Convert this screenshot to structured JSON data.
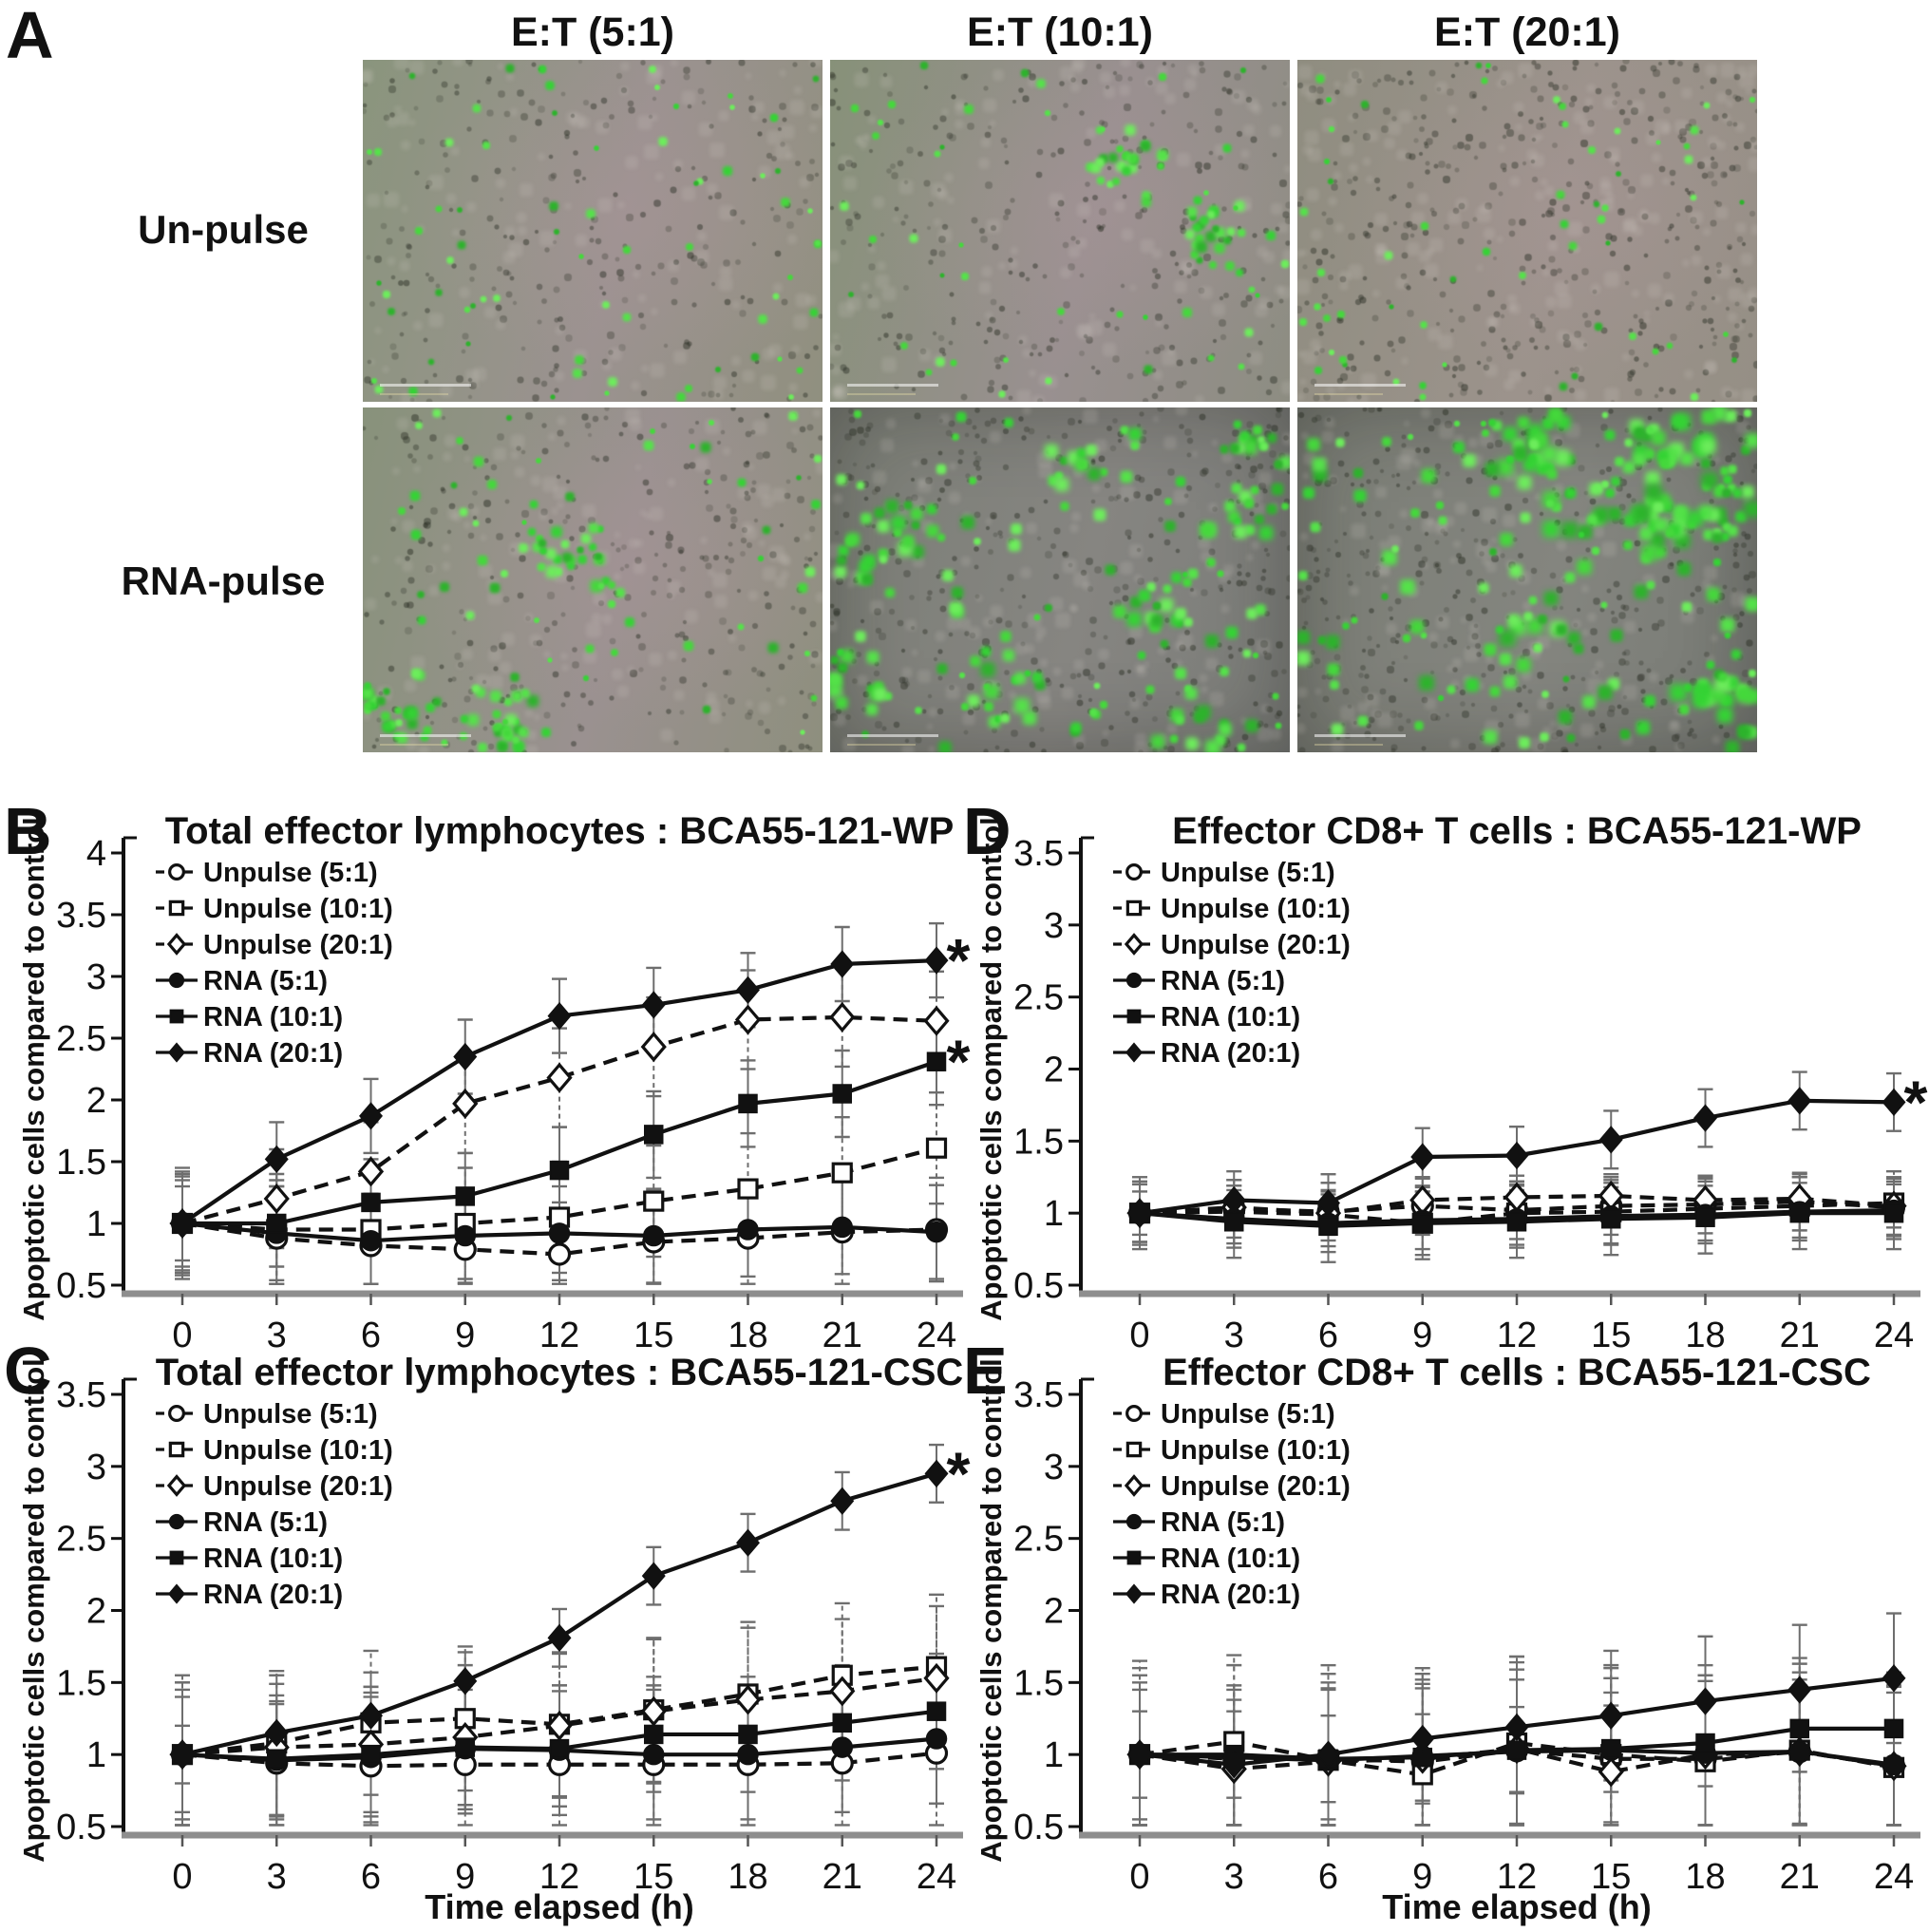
{
  "panel_a": {
    "label": "A",
    "col_headers": [
      "E:T (5:1)",
      "E:T (10:1)",
      "E:T (20:1)"
    ],
    "row_labels": [
      "Un-pulse",
      "RNA-pulse"
    ],
    "tiles": [
      {
        "name": "unpulse-5-1",
        "c1": "#8a957d",
        "c2": "#9b9290",
        "c3": "#90907f",
        "tint": true,
        "dots": 70,
        "dmin": 3,
        "dmax": 8,
        "clusters": 0,
        "bias": "none",
        "speckles": 260,
        "blobs": 120,
        "vignette": false,
        "seed": 11
      },
      {
        "name": "unpulse-10-1",
        "c1": "#879179",
        "c2": "#999090",
        "c3": "#8d8d82",
        "tint": true,
        "dots": 95,
        "dmin": 3,
        "dmax": 8,
        "clusters": 2,
        "bias": "none",
        "speckles": 300,
        "blobs": 130,
        "vignette": false,
        "seed": 22
      },
      {
        "name": "unpulse-20-1",
        "c1": "#8f8d80",
        "c2": "#9c938c",
        "c3": "#958f85",
        "tint": true,
        "dots": 60,
        "dmin": 3,
        "dmax": 7,
        "clusters": 0,
        "bias": "none",
        "speckles": 430,
        "blobs": 180,
        "vignette": false,
        "seed": 33
      },
      {
        "name": "rna-5-1",
        "c1": "#88927b",
        "c2": "#9a9190",
        "c3": "#8e8f7e",
        "tint": true,
        "dots": 140,
        "dmin": 3,
        "dmax": 9,
        "clusters": 3,
        "bias": "none",
        "speckles": 310,
        "blobs": 130,
        "vignette": false,
        "seed": 44
      },
      {
        "name": "rna-10-1",
        "c1": "#7b7e76",
        "c2": "#868581",
        "c3": "#7a7c78",
        "tint": false,
        "dots": 190,
        "dmin": 4,
        "dmax": 12,
        "clusters": 9,
        "bias": "none",
        "speckles": 400,
        "blobs": 140,
        "vignette": true,
        "seed": 55
      },
      {
        "name": "rna-20-1",
        "c1": "#7a7d75",
        "c2": "#84857f",
        "c3": "#777a74",
        "tint": false,
        "dots": 260,
        "dmin": 4,
        "dmax": 14,
        "clusters": 13,
        "bias": "right",
        "speckles": 440,
        "blobs": 150,
        "vignette": true,
        "seed": 66
      }
    ]
  },
  "star_symbol": "*",
  "colors": {
    "text": "#111111",
    "axis": "#111111",
    "baseline": "#8e8e8e",
    "error_bar": "#6e6e6e",
    "marker": "#111111",
    "fluorescence_green": "#45d83c"
  },
  "chart_data": [
    {
      "panel": "B",
      "type": "line",
      "title": "Total effector lymphocytes : BCA55-121-WP",
      "ylabel": "Apoptotic cells compared to control",
      "xlabel": "",
      "x": [
        0,
        3,
        6,
        9,
        12,
        15,
        18,
        21,
        24
      ],
      "ylim": [
        0.5,
        4
      ],
      "yticks": [
        0.5,
        1,
        1.5,
        2,
        2.5,
        3,
        3.5,
        4
      ],
      "legend_position": "top-left",
      "series": [
        {
          "name": "Unpulse (5:1)",
          "marker": "circle",
          "fill": "open",
          "line": "dashed",
          "err": 0.42,
          "star": false,
          "values": [
            1,
            0.88,
            0.82,
            0.79,
            0.75,
            0.85,
            0.88,
            0.93,
            0.95
          ]
        },
        {
          "name": "Unpulse (10:1)",
          "marker": "square",
          "fill": "open",
          "line": "dashed",
          "err": 0.45,
          "star": false,
          "values": [
            1,
            0.95,
            0.95,
            1.0,
            1.05,
            1.18,
            1.28,
            1.41,
            1.61
          ]
        },
        {
          "name": "Unpulse (20:1)",
          "marker": "diamond",
          "fill": "open",
          "line": "dashed",
          "err": 0.4,
          "star": false,
          "values": [
            1,
            1.2,
            1.42,
            1.97,
            2.18,
            2.43,
            2.65,
            2.67,
            2.64
          ]
        },
        {
          "name": "RNA (5:1)",
          "marker": "circle",
          "fill": "solid",
          "line": "solid",
          "err": 0.38,
          "star": false,
          "values": [
            1,
            0.92,
            0.86,
            0.9,
            0.92,
            0.9,
            0.95,
            0.97,
            0.93
          ]
        },
        {
          "name": "RNA (10:1)",
          "marker": "square",
          "fill": "solid",
          "line": "solid",
          "err": 0.35,
          "star": true,
          "values": [
            1,
            1.0,
            1.17,
            1.22,
            1.43,
            1.72,
            1.97,
            2.05,
            2.31
          ]
        },
        {
          "name": "RNA (20:1)",
          "marker": "diamond",
          "fill": "solid",
          "line": "solid",
          "err": 0.3,
          "star": true,
          "values": [
            1,
            1.52,
            1.87,
            2.35,
            2.68,
            2.77,
            2.89,
            3.1,
            3.13
          ]
        }
      ]
    },
    {
      "panel": "C",
      "type": "line",
      "title": "Total effector lymphocytes : BCA55-121-CSC",
      "ylabel": "Apoptotic cells compared to control",
      "xlabel": "Time elapsed (h)",
      "x": [
        0,
        3,
        6,
        9,
        12,
        15,
        18,
        21,
        24
      ],
      "ylim": [
        0.5,
        3.5
      ],
      "yticks": [
        0.5,
        1,
        1.5,
        2,
        2.5,
        3,
        3.5
      ],
      "legend_position": "top-left",
      "series": [
        {
          "name": "Unpulse (5:1)",
          "marker": "circle",
          "fill": "open",
          "line": "dashed",
          "err": 0.55,
          "star": false,
          "values": [
            1,
            0.94,
            0.92,
            0.93,
            0.93,
            0.93,
            0.93,
            0.94,
            1.01
          ]
        },
        {
          "name": "Unpulse (10:1)",
          "marker": "square",
          "fill": "open",
          "line": "dashed",
          "err": 0.5,
          "star": false,
          "values": [
            1,
            1.08,
            1.22,
            1.25,
            1.21,
            1.31,
            1.42,
            1.55,
            1.61
          ]
        },
        {
          "name": "Unpulse (20:1)",
          "marker": "diamond",
          "fill": "open",
          "line": "dashed",
          "err": 0.5,
          "star": false,
          "values": [
            1,
            1.05,
            1.07,
            1.12,
            1.2,
            1.3,
            1.38,
            1.44,
            1.53
          ]
        },
        {
          "name": "RNA (5:1)",
          "marker": "circle",
          "fill": "solid",
          "line": "solid",
          "err": 0.45,
          "star": false,
          "values": [
            1,
            0.96,
            0.98,
            1.04,
            1.03,
            1.0,
            1.0,
            1.05,
            1.11
          ]
        },
        {
          "name": "RNA (10:1)",
          "marker": "square",
          "fill": "solid",
          "line": "solid",
          "err": 0.4,
          "star": false,
          "values": [
            1,
            0.97,
            1.0,
            1.05,
            1.04,
            1.14,
            1.14,
            1.22,
            1.3
          ]
        },
        {
          "name": "RNA (20:1)",
          "marker": "diamond",
          "fill": "solid",
          "line": "solid",
          "err": 0.2,
          "star": true,
          "values": [
            1,
            1.15,
            1.27,
            1.51,
            1.81,
            2.24,
            2.47,
            2.76,
            2.95
          ]
        }
      ]
    },
    {
      "panel": "D",
      "type": "line",
      "title": "Effector CD8+ T cells : BCA55-121-WP",
      "ylabel": "Apoptotic cells compared to control",
      "xlabel": "",
      "x": [
        0,
        3,
        6,
        9,
        12,
        15,
        18,
        21,
        24
      ],
      "ylim": [
        0.5,
        3.5
      ],
      "yticks": [
        0.5,
        1,
        1.5,
        2,
        2.5,
        3,
        3.5
      ],
      "legend_position": "top-left",
      "series": [
        {
          "name": "Unpulse (5:1)",
          "marker": "circle",
          "fill": "open",
          "line": "dashed",
          "err": 0.2,
          "star": false,
          "values": [
            1,
            1.03,
            1.01,
            1.05,
            1.02,
            1.05,
            1.06,
            1.08,
            1.04
          ]
        },
        {
          "name": "Unpulse (10:1)",
          "marker": "square",
          "fill": "open",
          "line": "dashed",
          "err": 0.22,
          "star": false,
          "values": [
            1,
            1.01,
            0.99,
            0.93,
            1.0,
            1.01,
            1.03,
            1.05,
            1.07
          ]
        },
        {
          "name": "Unpulse (20:1)",
          "marker": "diamond",
          "fill": "open",
          "line": "dashed",
          "err": 0.15,
          "star": false,
          "values": [
            1,
            1.04,
            1.0,
            1.09,
            1.11,
            1.12,
            1.09,
            1.1,
            1.05
          ]
        },
        {
          "name": "RNA (5:1)",
          "marker": "circle",
          "fill": "solid",
          "line": "solid",
          "err": 0.2,
          "star": false,
          "values": [
            1,
            0.96,
            0.93,
            0.95,
            0.96,
            0.98,
            0.99,
            1.01,
            1.02
          ]
        },
        {
          "name": "RNA (10:1)",
          "marker": "square",
          "fill": "solid",
          "line": "solid",
          "err": 0.25,
          "star": false,
          "values": [
            1,
            0.94,
            0.91,
            0.93,
            0.94,
            0.96,
            0.97,
            1.0,
            1.0
          ]
        },
        {
          "name": "RNA (20:1)",
          "marker": "diamond",
          "fill": "solid",
          "line": "solid",
          "err": 0.2,
          "star": true,
          "values": [
            1,
            1.09,
            1.07,
            1.39,
            1.4,
            1.51,
            1.66,
            1.78,
            1.77
          ]
        }
      ]
    },
    {
      "panel": "E",
      "type": "line",
      "title": "Effector CD8+ T cells : BCA55-121-CSC",
      "ylabel": "Apoptotic cells compared to control",
      "xlabel": "Time elapsed (h)",
      "x": [
        0,
        3,
        6,
        9,
        12,
        15,
        18,
        21,
        24
      ],
      "ylim": [
        0.5,
        3.5
      ],
      "yticks": [
        0.5,
        1,
        1.5,
        2,
        2.5,
        3,
        3.5
      ],
      "legend_position": "top-left",
      "series": [
        {
          "name": "Unpulse (5:1)",
          "marker": "circle",
          "fill": "open",
          "line": "dashed",
          "err": 0.65,
          "star": false,
          "values": [
            1,
            0.97,
            0.97,
            0.95,
            1.03,
            0.97,
            0.97,
            1.02,
            0.92
          ]
        },
        {
          "name": "Unpulse (10:1)",
          "marker": "square",
          "fill": "open",
          "line": "dashed",
          "err": 0.6,
          "star": false,
          "values": [
            1,
            1.09,
            0.96,
            0.86,
            1.08,
            1.0,
            0.95,
            1.03,
            0.91
          ]
        },
        {
          "name": "Unpulse (20:1)",
          "marker": "diamond",
          "fill": "open",
          "line": "dashed",
          "err": 0.55,
          "star": false,
          "values": [
            1,
            0.9,
            0.95,
            0.97,
            1.04,
            0.88,
            1.0,
            1.02,
            0.92
          ]
        },
        {
          "name": "RNA (5:1)",
          "marker": "circle",
          "fill": "solid",
          "line": "solid",
          "err": 0.5,
          "star": false,
          "values": [
            1,
            0.98,
            0.96,
            0.99,
            1.02,
            1.03,
            1.01,
            1.02,
            0.93
          ]
        },
        {
          "name": "RNA (10:1)",
          "marker": "square",
          "fill": "solid",
          "line": "solid",
          "err": 0.3,
          "star": false,
          "values": [
            1,
            1.0,
            0.97,
            0.98,
            1.03,
            1.04,
            1.08,
            1.18,
            1.18
          ]
        },
        {
          "name": "RNA (20:1)",
          "marker": "diamond",
          "fill": "solid",
          "line": "solid",
          "err": 0.45,
          "star": false,
          "values": [
            1,
            0.93,
            1.0,
            1.11,
            1.19,
            1.27,
            1.37,
            1.45,
            1.53
          ]
        }
      ]
    }
  ]
}
